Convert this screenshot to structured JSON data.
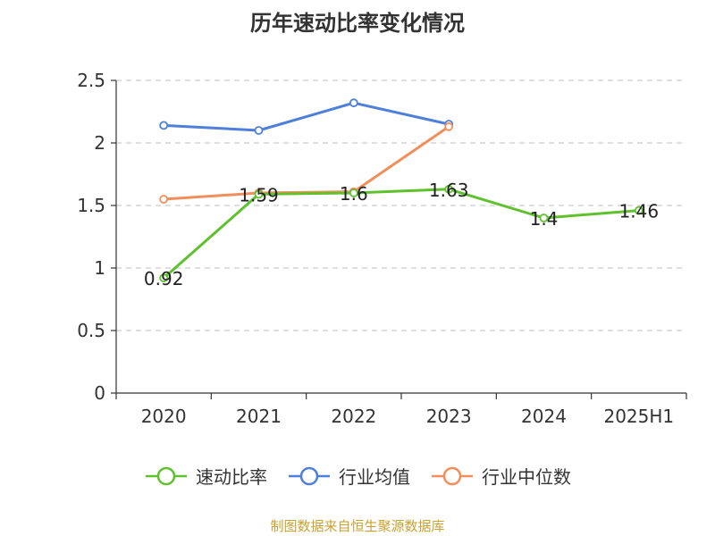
{
  "chart_data": {
    "type": "line",
    "title": "历年速动比率变化情况",
    "categories": [
      "2020",
      "2021",
      "2022",
      "2023",
      "2024",
      "2025H1"
    ],
    "ylim": [
      0,
      2.5
    ],
    "yticks": [
      "0",
      "0.5",
      "1",
      "1.5",
      "2",
      "2.5"
    ],
    "grid": true,
    "legend_position": "bottom",
    "series": [
      {
        "name": "速动比率",
        "color": "#5fc12e",
        "values": [
          0.92,
          1.59,
          1.6,
          1.63,
          1.4,
          1.46
        ],
        "labels": [
          "0.92",
          "1.59",
          "1.6",
          "1.63",
          "1.4",
          "1.46"
        ]
      },
      {
        "name": "行业均值",
        "color": "#4e7fdb",
        "values": [
          2.14,
          2.1,
          2.32,
          2.15,
          null,
          null
        ]
      },
      {
        "name": "行业中位数",
        "color": "#f28e5b",
        "values": [
          1.55,
          1.6,
          1.61,
          2.13,
          null,
          null
        ]
      }
    ]
  },
  "source_text": "制图数据来自恒生聚源数据库"
}
